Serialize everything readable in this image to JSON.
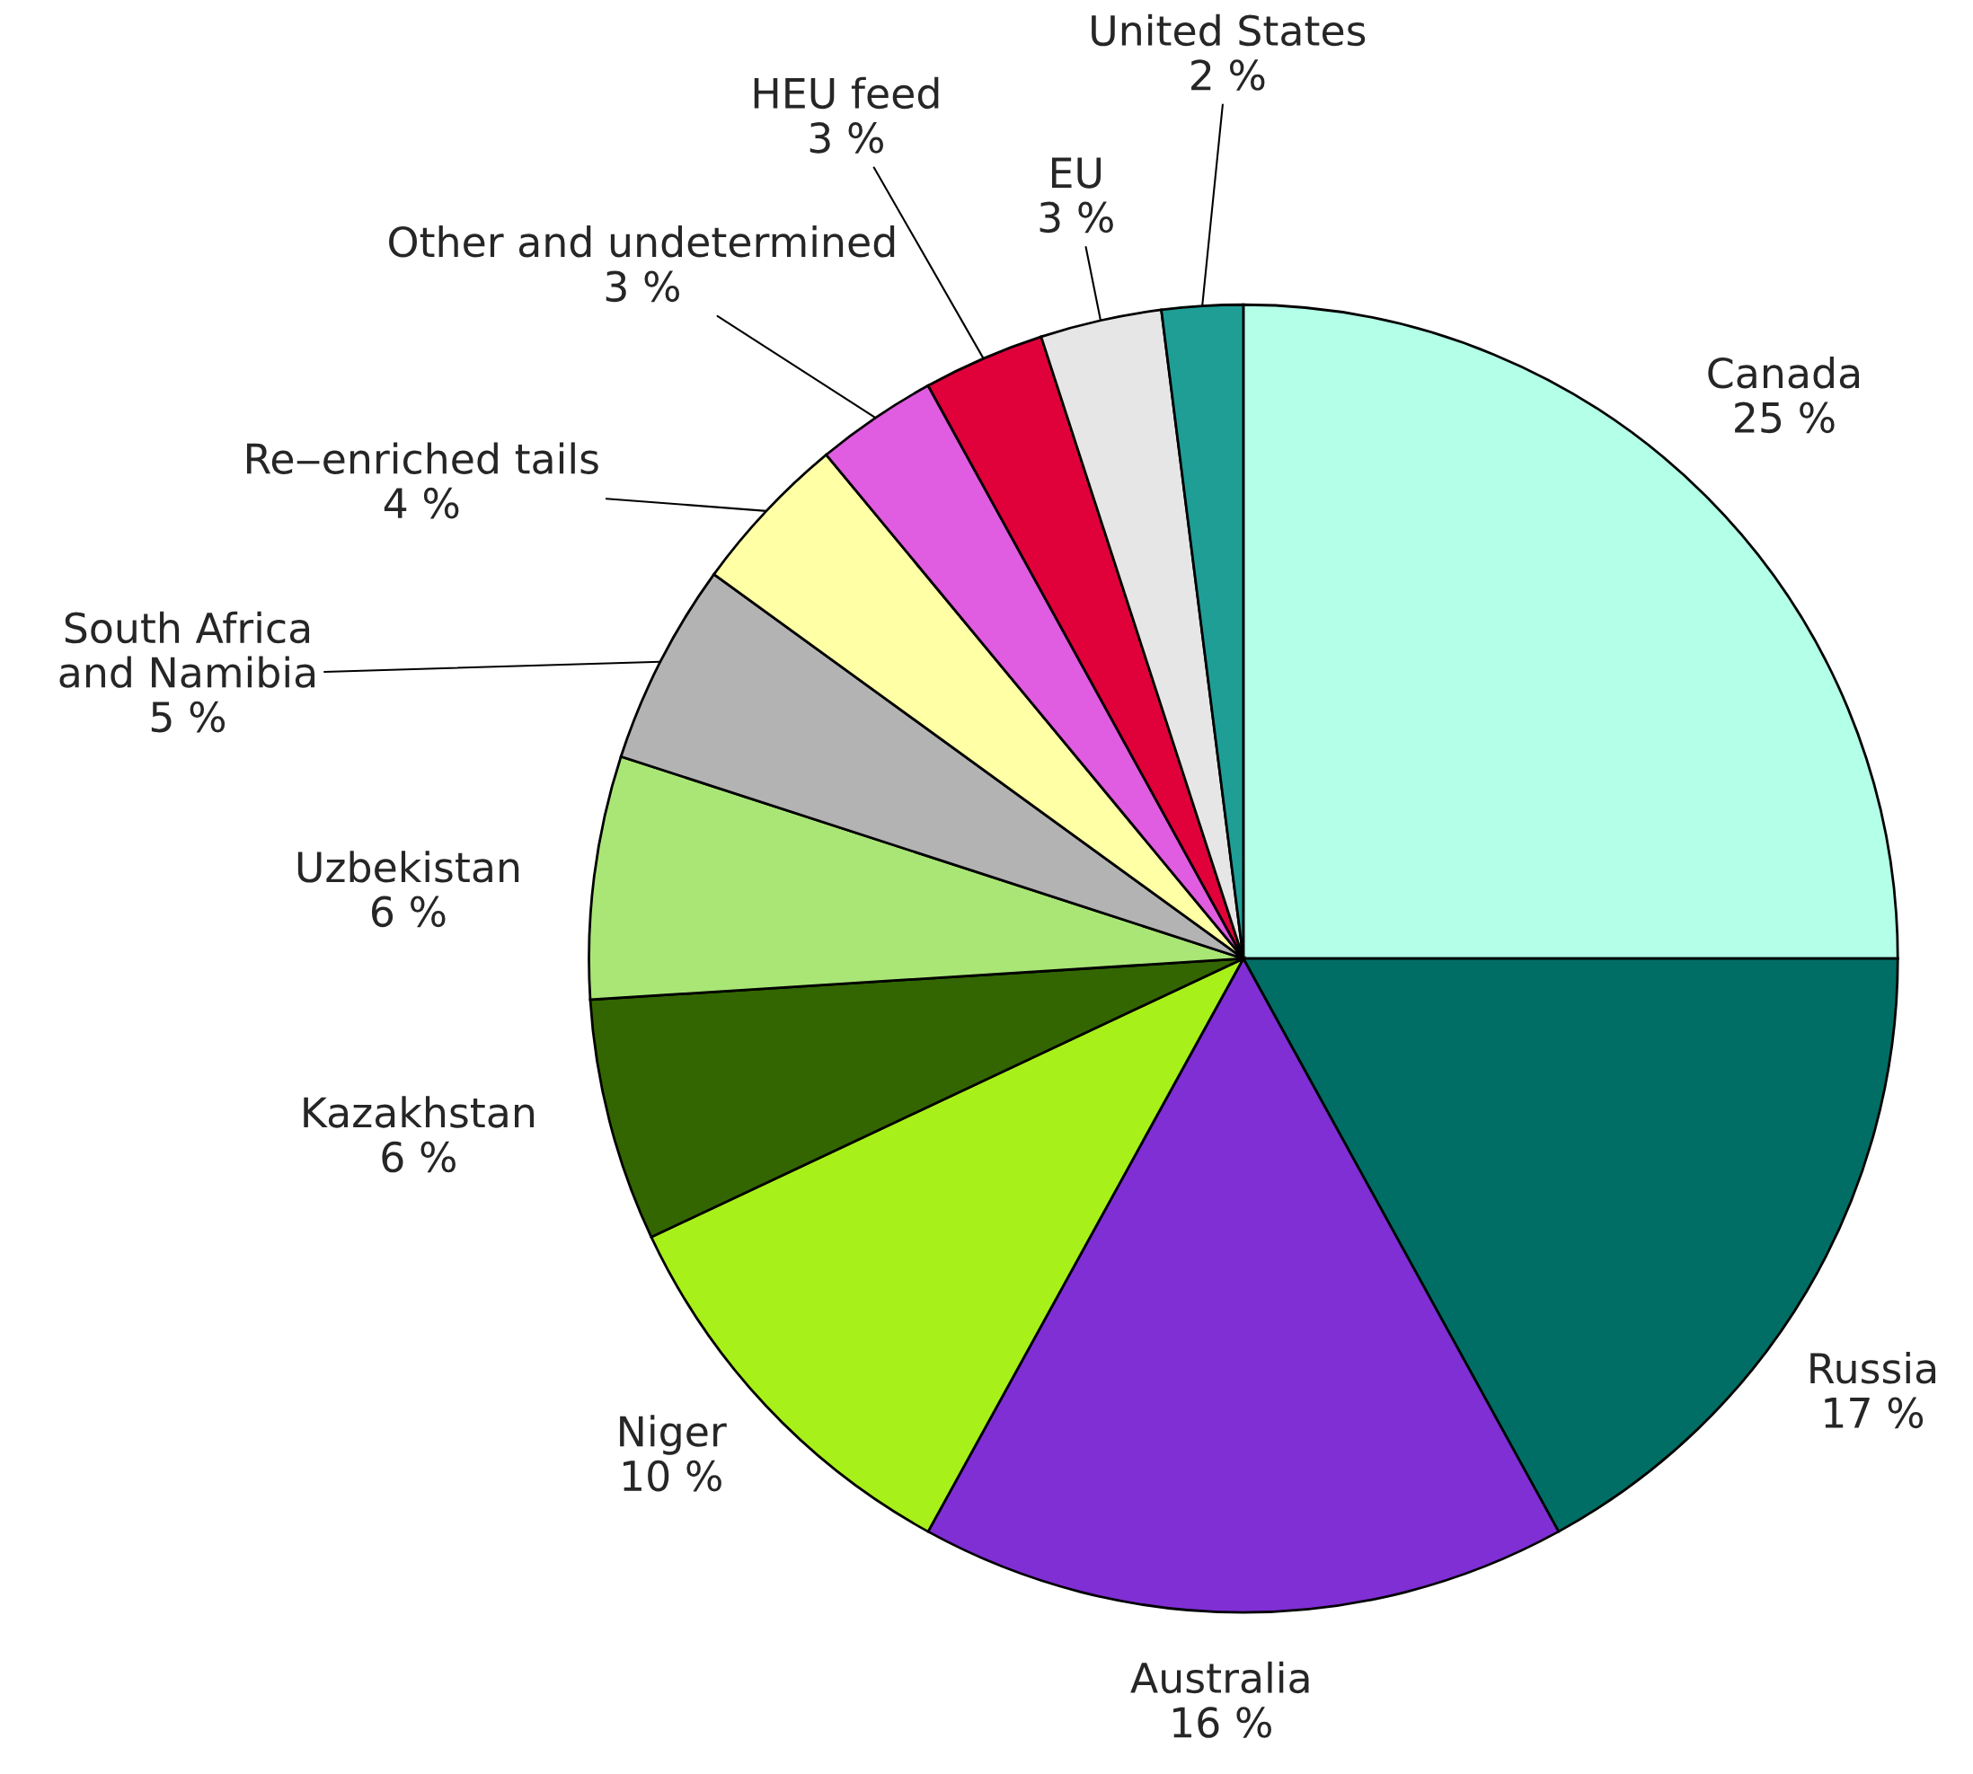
{
  "chart_data": {
    "type": "pie",
    "categories": [
      "Canada",
      "Russia",
      "Australia",
      "Niger",
      "Kazakhstan",
      "Uzbekistan",
      "South Africa\nand Namibia",
      "Re‒enriched tails",
      "Other and undetermined",
      "HEU feed",
      "EU",
      "United States"
    ],
    "values": [
      25,
      17,
      16,
      10,
      6,
      6,
      5,
      4,
      3,
      3,
      3,
      2
    ],
    "value_labels": [
      "25 %",
      "17 %",
      "16 %",
      "10 %",
      "6 %",
      "6 %",
      "5 %",
      "4 %",
      "3 %",
      "3 %",
      "3 %",
      "2 %"
    ],
    "colors": [
      "#b3ffe8",
      "#006e64",
      "#7f2fd4",
      "#a8f01a",
      "#336600",
      "#aae676",
      "#b3b3b3",
      "#ffffa6",
      "#e05ce0",
      "#e0003a",
      "#e6e6e6",
      "#1f9e96"
    ]
  }
}
